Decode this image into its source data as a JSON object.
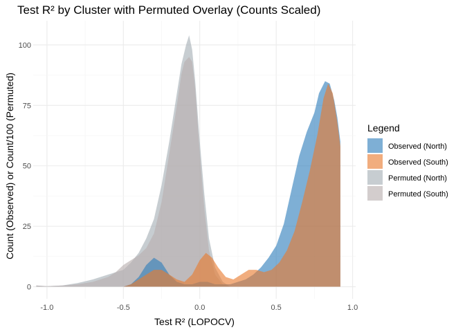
{
  "chart_data": {
    "type": "area",
    "title": "Test R² by Cluster with Permuted Overlay (Counts Scaled)",
    "xlabel": "Test R² (LOPOCV)",
    "ylabel": "Count (Observed) or Count/100 (Permuted)",
    "xlim": [
      -1.09,
      1.02
    ],
    "ylim": [
      -5,
      110
    ],
    "x_ticks": [
      -1.0,
      -0.5,
      0.0,
      0.5,
      1.0
    ],
    "x_tick_labels": [
      "-1.0",
      "-0.5",
      "0.0",
      "0.5",
      "1.0"
    ],
    "y_ticks": [
      0,
      25,
      50,
      75,
      100
    ],
    "y_tick_labels": [
      "0",
      "25",
      "50",
      "75",
      "100"
    ],
    "grid": true,
    "legend": {
      "title": "Legend",
      "position": "right",
      "entries": [
        "Observed (North)",
        "Observed (South)",
        "Permuted (North)",
        "Permuted (South)"
      ]
    },
    "series": [
      {
        "name": "Permuted (North)",
        "color": "#a4aeb5",
        "points": [
          [
            -1.07,
            0.5
          ],
          [
            -1.0,
            0.2
          ],
          [
            -0.9,
            0.5
          ],
          [
            -0.8,
            1.5
          ],
          [
            -0.7,
            3
          ],
          [
            -0.6,
            5
          ],
          [
            -0.5,
            7
          ],
          [
            -0.45,
            10
          ],
          [
            -0.4,
            14
          ],
          [
            -0.35,
            20
          ],
          [
            -0.3,
            28
          ],
          [
            -0.25,
            42
          ],
          [
            -0.2,
            60
          ],
          [
            -0.15,
            80
          ],
          [
            -0.12,
            92
          ],
          [
            -0.09,
            100
          ],
          [
            -0.07,
            104
          ],
          [
            -0.05,
            98
          ],
          [
            -0.03,
            85
          ],
          [
            0.0,
            60
          ],
          [
            0.03,
            38
          ],
          [
            0.06,
            20
          ],
          [
            0.1,
            8
          ],
          [
            0.15,
            2
          ],
          [
            0.2,
            0
          ]
        ]
      },
      {
        "name": "Permuted (South)",
        "color": "#b8aeae",
        "points": [
          [
            -1.07,
            0.5
          ],
          [
            -1.0,
            0.2
          ],
          [
            -0.9,
            0.5
          ],
          [
            -0.8,
            1
          ],
          [
            -0.7,
            2
          ],
          [
            -0.6,
            4
          ],
          [
            -0.55,
            6
          ],
          [
            -0.5,
            9
          ],
          [
            -0.45,
            11
          ],
          [
            -0.4,
            13
          ],
          [
            -0.35,
            16
          ],
          [
            -0.3,
            22
          ],
          [
            -0.25,
            35
          ],
          [
            -0.2,
            55
          ],
          [
            -0.15,
            75
          ],
          [
            -0.12,
            88
          ],
          [
            -0.1,
            93
          ],
          [
            -0.07,
            95
          ],
          [
            -0.05,
            93
          ],
          [
            -0.03,
            82
          ],
          [
            0.0,
            55
          ],
          [
            0.03,
            32
          ],
          [
            0.06,
            15
          ],
          [
            0.1,
            5
          ],
          [
            0.15,
            1
          ],
          [
            0.2,
            0
          ]
        ]
      },
      {
        "name": "Observed (North)",
        "color": "#2e7ebb",
        "points": [
          [
            -0.5,
            0
          ],
          [
            -0.45,
            1
          ],
          [
            -0.4,
            4
          ],
          [
            -0.35,
            9
          ],
          [
            -0.3,
            12
          ],
          [
            -0.25,
            10
          ],
          [
            -0.2,
            5
          ],
          [
            -0.15,
            2
          ],
          [
            -0.1,
            1
          ],
          [
            -0.05,
            1
          ],
          [
            0.0,
            2
          ],
          [
            0.05,
            2
          ],
          [
            0.1,
            1
          ],
          [
            0.2,
            1
          ],
          [
            0.25,
            2
          ],
          [
            0.3,
            3
          ],
          [
            0.35,
            5
          ],
          [
            0.4,
            8
          ],
          [
            0.45,
            12
          ],
          [
            0.5,
            17
          ],
          [
            0.55,
            26
          ],
          [
            0.6,
            40
          ],
          [
            0.65,
            54
          ],
          [
            0.7,
            64
          ],
          [
            0.75,
            72
          ],
          [
            0.78,
            80
          ],
          [
            0.82,
            85
          ],
          [
            0.85,
            84
          ],
          [
            0.88,
            77
          ],
          [
            0.9,
            70
          ],
          [
            0.92,
            60
          ],
          [
            0.92,
            0
          ]
        ]
      },
      {
        "name": "Observed (South)",
        "color": "#e97a2e",
        "points": [
          [
            -0.5,
            0
          ],
          [
            -0.45,
            1
          ],
          [
            -0.4,
            3
          ],
          [
            -0.35,
            5
          ],
          [
            -0.3,
            7
          ],
          [
            -0.25,
            7
          ],
          [
            -0.2,
            5
          ],
          [
            -0.15,
            3
          ],
          [
            -0.1,
            2
          ],
          [
            -0.05,
            5
          ],
          [
            0.0,
            11
          ],
          [
            0.04,
            14
          ],
          [
            0.08,
            12
          ],
          [
            0.12,
            8
          ],
          [
            0.17,
            4
          ],
          [
            0.22,
            3
          ],
          [
            0.27,
            5
          ],
          [
            0.32,
            7
          ],
          [
            0.37,
            7
          ],
          [
            0.42,
            6
          ],
          [
            0.47,
            7
          ],
          [
            0.52,
            10
          ],
          [
            0.57,
            15
          ],
          [
            0.62,
            23
          ],
          [
            0.67,
            35
          ],
          [
            0.72,
            48
          ],
          [
            0.77,
            63
          ],
          [
            0.81,
            78
          ],
          [
            0.84,
            84
          ],
          [
            0.87,
            80
          ],
          [
            0.9,
            68
          ],
          [
            0.92,
            58
          ],
          [
            0.92,
            0
          ]
        ]
      }
    ]
  }
}
